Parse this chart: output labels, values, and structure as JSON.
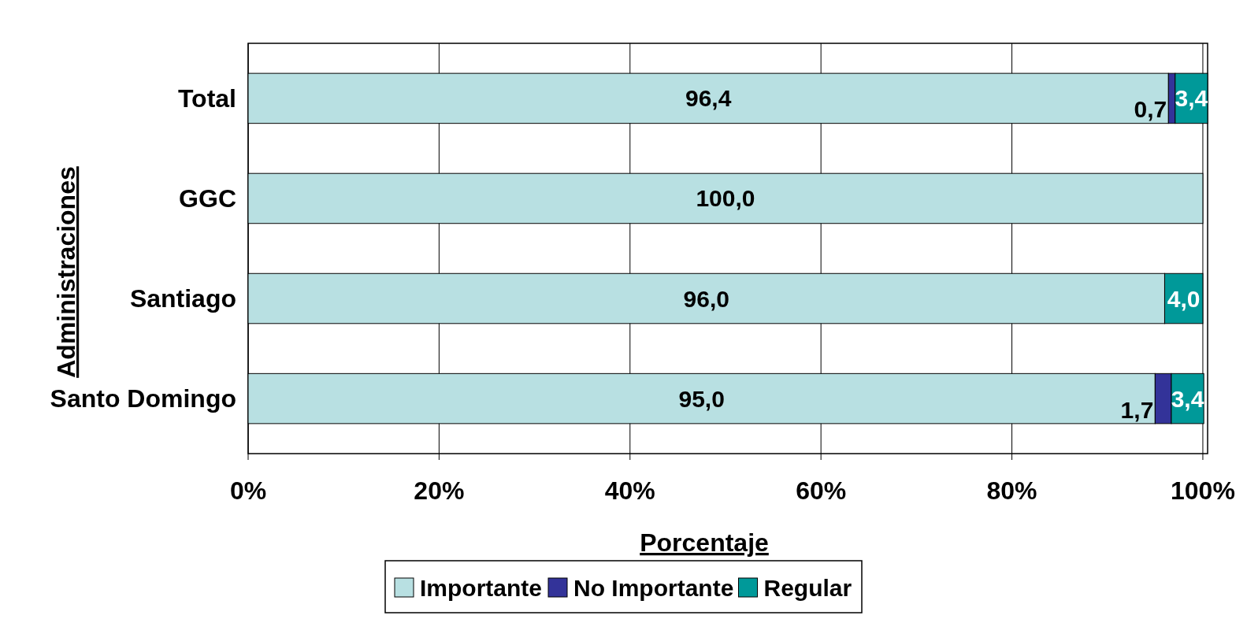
{
  "chart_data": {
    "type": "bar",
    "orientation": "horizontal",
    "stacked": true,
    "categories": [
      "Total",
      "GGC",
      "Santiago",
      "Santo Domingo"
    ],
    "series": [
      {
        "name": "Importante",
        "color": "#b8e0e2",
        "values": [
          96.4,
          100.0,
          96.0,
          95.0
        ],
        "value_labels": [
          "96,4",
          "100,0",
          "96,0",
          "95,0"
        ]
      },
      {
        "name": "No Importante",
        "color": "#333399",
        "values": [
          0.7,
          0,
          0,
          1.7
        ],
        "value_labels": [
          "0,7",
          null,
          null,
          "1,7"
        ]
      },
      {
        "name": "Regular",
        "color": "#009999",
        "values": [
          3.4,
          0,
          4.0,
          3.4
        ],
        "value_labels": [
          "3,4",
          null,
          "4,0",
          "3,4"
        ]
      }
    ],
    "xlim": [
      0,
      100.5
    ],
    "xticks": [
      {
        "value": 0,
        "label": "0%"
      },
      {
        "value": 20,
        "label": "20%"
      },
      {
        "value": 40,
        "label": "40%"
      },
      {
        "value": 60,
        "label": "60%"
      },
      {
        "value": 80,
        "label": "80%"
      },
      {
        "value": 100,
        "label": "100%"
      }
    ],
    "xlabel": "Porcentaje",
    "ylabel": "Administraciones",
    "grid": "x",
    "legend": "bottom"
  }
}
